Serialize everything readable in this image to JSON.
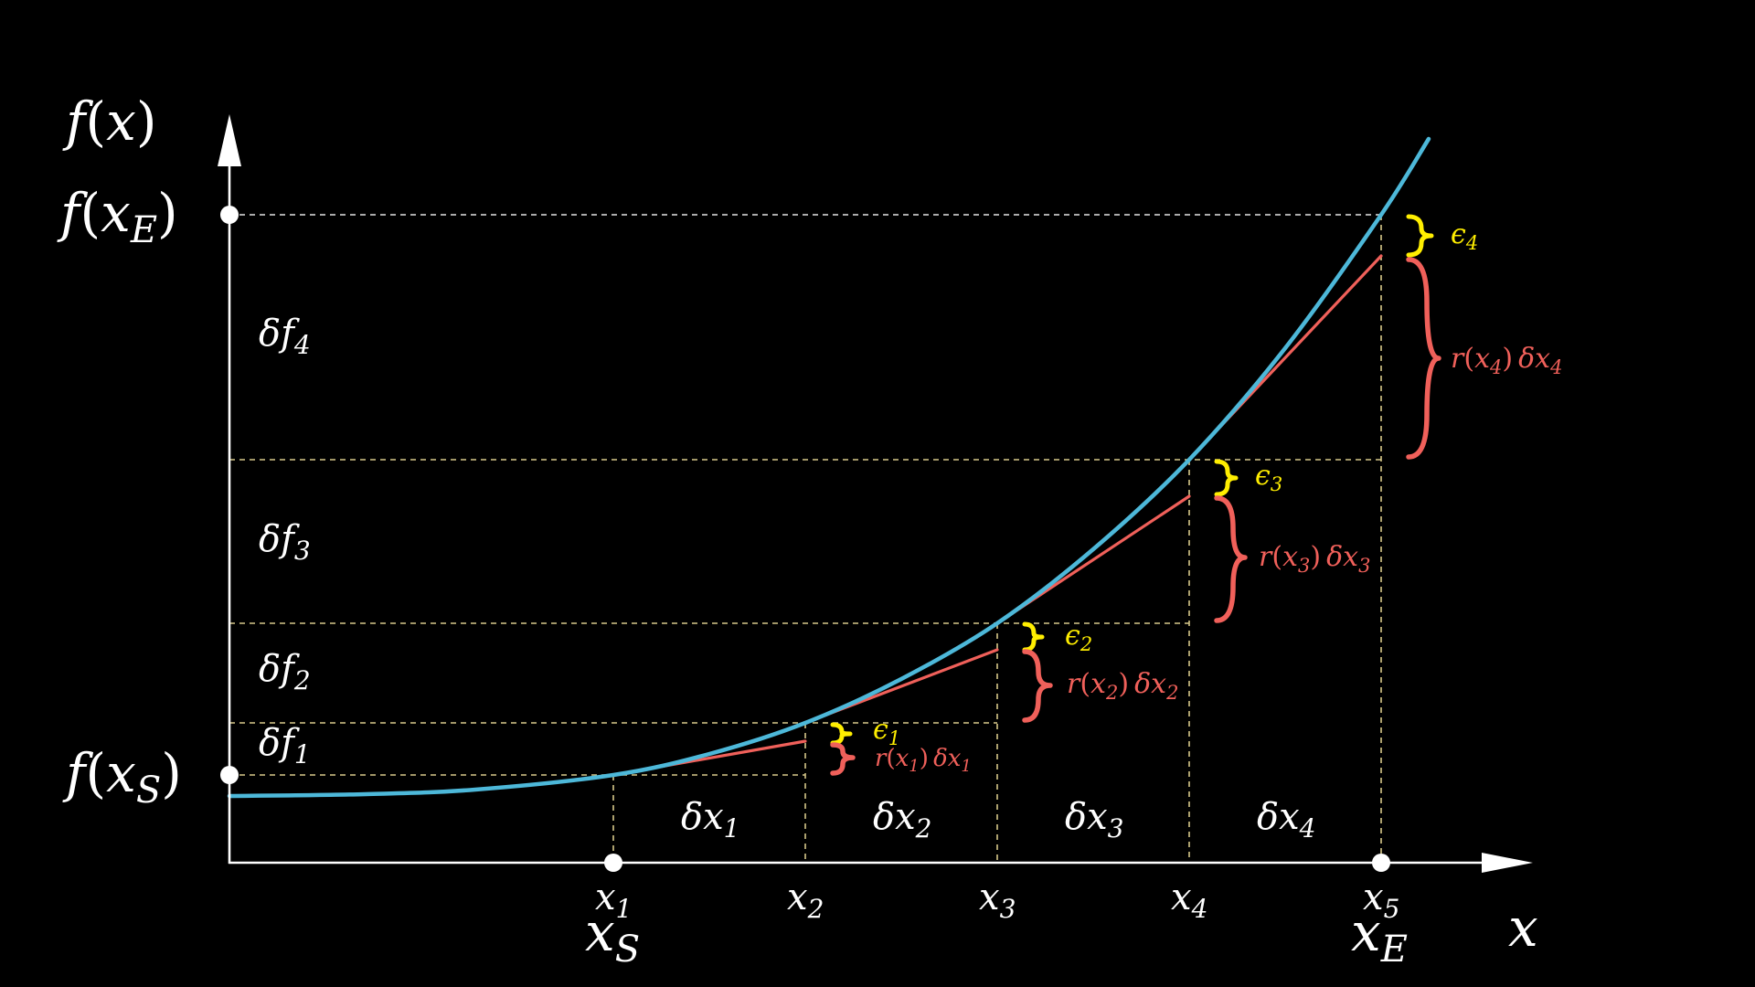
{
  "colors": {
    "background": "#000000",
    "axis": "#ffffff",
    "curve": "#4db8d9",
    "tangent": "#f0605a",
    "error": "#ffee00",
    "guide": "#d8c98a"
  },
  "axis_labels": {
    "y_axis": "f(x)",
    "x_axis": "x",
    "y_top": "f(x_E)",
    "y_bottom": "f(x_S)"
  },
  "x_points": [
    {
      "label": "x_1",
      "extra": "x_S"
    },
    {
      "label": "x_2",
      "extra": ""
    },
    {
      "label": "x_3",
      "extra": ""
    },
    {
      "label": "x_4",
      "extra": ""
    },
    {
      "label": "x_5",
      "extra": "x_E"
    }
  ],
  "dx_labels": [
    "δx_1",
    "δx_2",
    "δx_3",
    "δx_4"
  ],
  "df_labels": [
    "δf_1",
    "δf_2",
    "δf_3",
    "δf_4"
  ],
  "eps_labels": [
    "ϵ_1",
    "ϵ_2",
    "ϵ_3",
    "ϵ_4"
  ],
  "rdx_labels": [
    "r(x_1) δx_1",
    "r(x_2) δx_2",
    "r(x_3) δx_3",
    "r(x_4) δx_4"
  ]
}
